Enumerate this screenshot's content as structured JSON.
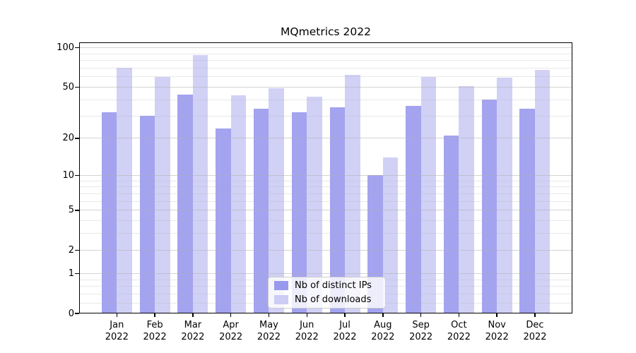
{
  "chart_data": {
    "type": "bar",
    "title": "MQmetrics 2022",
    "xlabel": "",
    "ylabel": "",
    "categories": [
      "Jan",
      "Feb",
      "Mar",
      "Apr",
      "May",
      "Jun",
      "Jul",
      "Aug",
      "Sep",
      "Oct",
      "Nov",
      "Dec"
    ],
    "category_year": "2022",
    "series": [
      {
        "name": "Nb of distinct IPs",
        "color": "#9999ee",
        "values": [
          32,
          30,
          44,
          24,
          34,
          32,
          35,
          10,
          36,
          21,
          40,
          34
        ]
      },
      {
        "name": "Nb of downloads",
        "color": "#ccccf5",
        "values": [
          70,
          60,
          88,
          43,
          49,
          42,
          62,
          14,
          60,
          51,
          59,
          68
        ]
      }
    ],
    "yscale": "symlog (y position proportional to log(1+value))",
    "ylim": [
      0,
      110
    ],
    "y_major_ticks": [
      0,
      1,
      2,
      5,
      10,
      20,
      50,
      100
    ],
    "y_minor_ticks": [
      0.2,
      0.4,
      0.6,
      0.8,
      3,
      4,
      6,
      7,
      8,
      9,
      30,
      40,
      60,
      70,
      80,
      90
    ],
    "bar_opacity": 0.9,
    "grid": {
      "axis": "y",
      "major_color": "rgba(176,176,176,0.55)",
      "minor_color": "rgba(176,176,176,0.28)",
      "drawn_above_bars": true
    },
    "legend": {
      "position": "lower center",
      "background": "rgba(255,255,255,0.8)",
      "border_color": "#cccccc"
    }
  }
}
